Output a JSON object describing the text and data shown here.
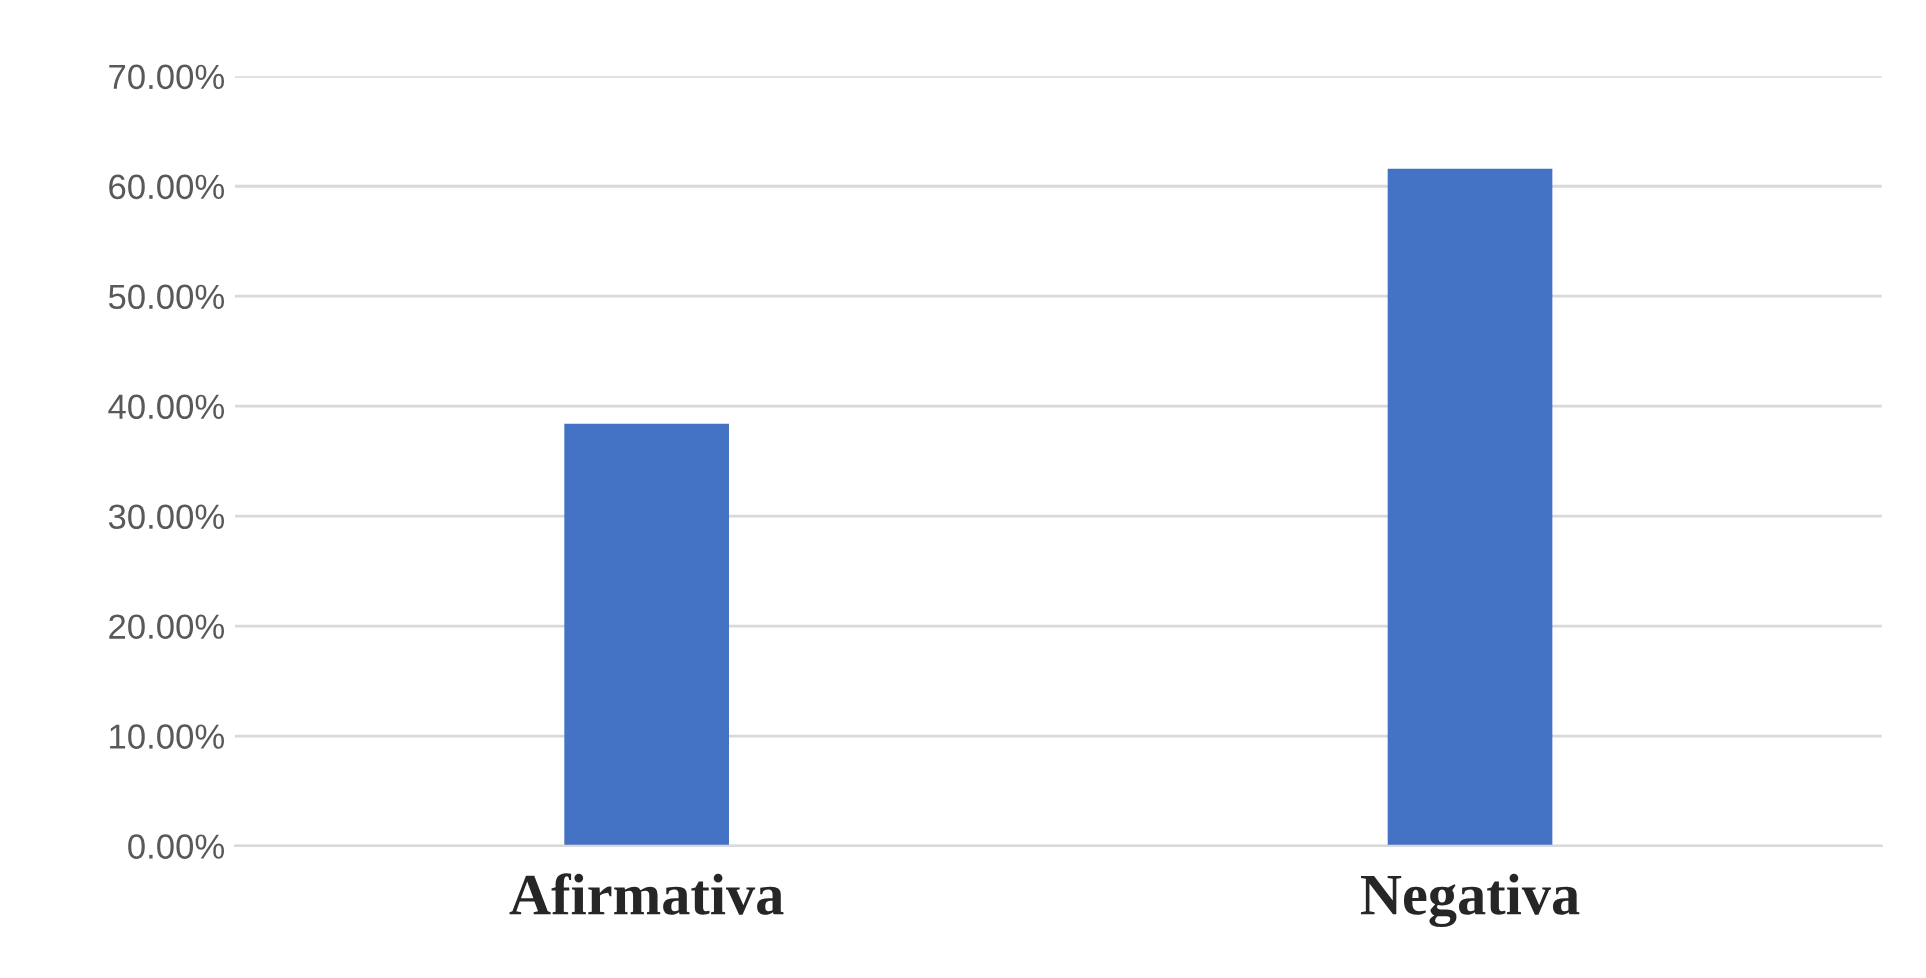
{
  "chart_data": {
    "type": "bar",
    "categories": [
      "Afirmativa",
      "Negativa"
    ],
    "values": [
      38.4,
      61.6
    ],
    "color": "#4472c4",
    "ylim": [
      0,
      70
    ],
    "yticks": [
      {
        "value": 0,
        "label": "0.00%"
      },
      {
        "value": 10,
        "label": "10.00%"
      },
      {
        "value": 20,
        "label": "20.00%"
      },
      {
        "value": 30,
        "label": "30.00%"
      },
      {
        "value": 40,
        "label": "40.00%"
      },
      {
        "value": 50,
        "label": "50.00%"
      },
      {
        "value": 60,
        "label": "60.00%"
      },
      {
        "value": 70,
        "label": "70.00%"
      }
    ],
    "grid": "y",
    "legend": false
  }
}
